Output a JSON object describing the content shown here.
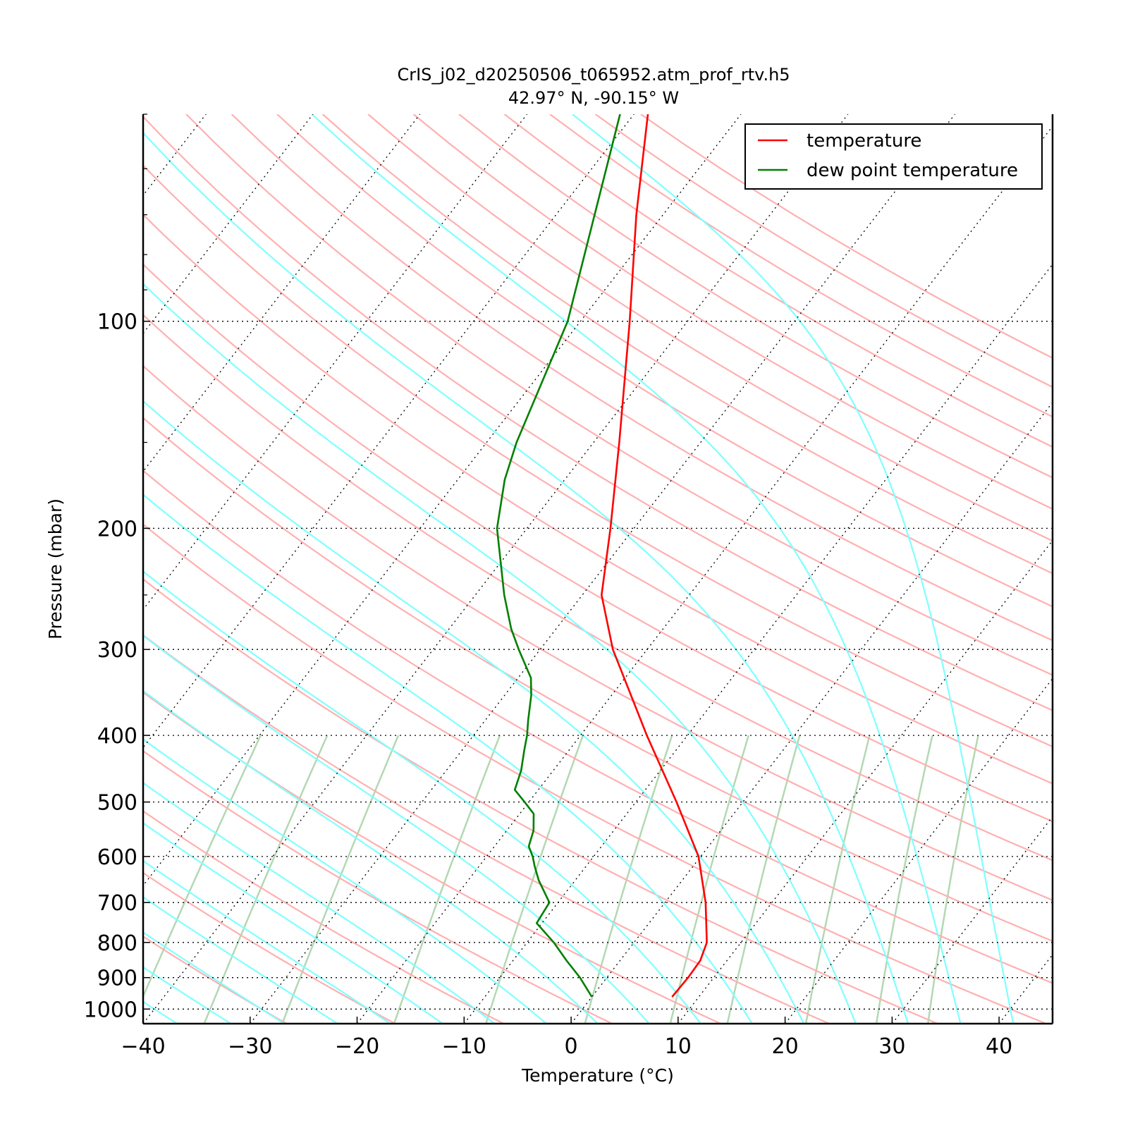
{
  "chart_data": {
    "type": "line",
    "title": "CrIS_j02_d20250506_t065952.atm_prof_rtv.h5",
    "subtitle": "42.97$^\\circ$N, -90.15$^\\circ$W",
    "subtitle_display": "42.97° N, -90.15° W",
    "xlabel": "Temperature ($^\\circ$C)",
    "xlabel_display": "Temperature (°C)",
    "ylabel": "Pressure (mbar)",
    "xlim": [
      -40,
      45
    ],
    "ylim": [
      1050,
      50
    ],
    "y_scale": "log",
    "skew": true,
    "grid": true,
    "legend_position": "top-right",
    "x_ticks": [
      -40,
      -30,
      -20,
      -10,
      0,
      10,
      20,
      30,
      40
    ],
    "x_tick_labels": [
      "−40",
      "−30",
      "−20",
      "−10",
      "0",
      "10",
      "20",
      "30",
      "40"
    ],
    "y_ticks": [
      100,
      200,
      300,
      400,
      500,
      600,
      700,
      800,
      900,
      1000
    ],
    "y_tick_labels": [
      "100",
      "200",
      "300",
      "400",
      "500",
      "600",
      "700",
      "800",
      "900",
      "1000"
    ],
    "series": [
      {
        "name": "temperature",
        "color": "#ff0000",
        "pressure": [
          960,
          900,
          850,
          800,
          700,
          600,
          500,
          400,
          300,
          250,
          200,
          150,
          100,
          70,
          50
        ],
        "values": [
          7.5,
          7.6,
          7.5,
          6.8,
          3.8,
          -0.2,
          -6.2,
          -13.8,
          -23.2,
          -28.2,
          -32.2,
          -37.6,
          -45.4,
          -52.5,
          -58.7
        ]
      },
      {
        "name": "dew point temperature",
        "color": "#008000",
        "pressure": [
          960,
          900,
          850,
          800,
          750,
          700,
          650,
          620,
          600,
          580,
          550,
          520,
          500,
          480,
          450,
          420,
          400,
          380,
          350,
          330,
          300,
          280,
          250,
          200,
          170,
          150,
          100,
          50
        ],
        "values": [
          0.0,
          -2.5,
          -5.0,
          -7.5,
          -10.5,
          -10.8,
          -13.4,
          -14.8,
          -15.7,
          -16.8,
          -17.5,
          -18.7,
          -20.4,
          -22.2,
          -23.0,
          -24.2,
          -25.0,
          -26.0,
          -27.5,
          -28.8,
          -32.0,
          -34.2,
          -37.3,
          -42.8,
          -45.6,
          -47.2,
          -51.2,
          -61.3
        ]
      }
    ],
    "background_lines": {
      "dry_adiabats_color": "#ffb0b0",
      "moist_adiabats_color": "#80ffff",
      "mixing_ratio_color": "#b3d8b3",
      "isotherm_style": "dotted black"
    }
  }
}
